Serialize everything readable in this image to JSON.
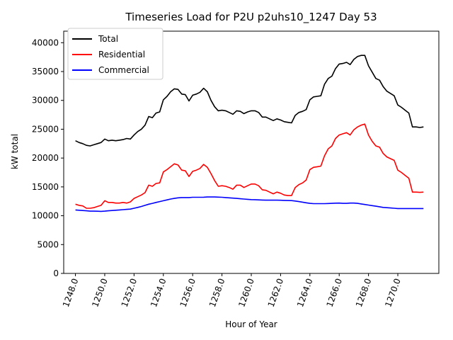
{
  "chart_data": {
    "type": "line",
    "title": "Timeseries Load for P2U p2uhs10_1247  Day 53",
    "xlabel": "Hour of Year",
    "ylabel": "kW total",
    "xlim": [
      1247.2,
      1272.8
    ],
    "ylim": [
      0,
      42000
    ],
    "xticks": [
      1248,
      1250,
      1252,
      1254,
      1256,
      1258,
      1260,
      1262,
      1264,
      1266,
      1268,
      1270
    ],
    "xtick_labels": [
      "1248.0",
      "1250.0",
      "1252.0",
      "1254.0",
      "1256.0",
      "1258.0",
      "1260.0",
      "1262.0",
      "1264.0",
      "1266.0",
      "1268.0",
      "1270.0"
    ],
    "yticks": [
      0,
      5000,
      10000,
      15000,
      20000,
      25000,
      30000,
      35000,
      40000
    ],
    "ytick_labels": [
      "0",
      "5000",
      "10000",
      "15000",
      "20000",
      "25000",
      "30000",
      "35000",
      "40000"
    ],
    "grid": false,
    "legend_position": "top-left",
    "x": [
      1248.0,
      1248.25,
      1248.5,
      1248.75,
      1249.0,
      1249.25,
      1249.5,
      1249.75,
      1250.0,
      1250.25,
      1250.5,
      1250.75,
      1251.0,
      1251.25,
      1251.5,
      1251.75,
      1252.0,
      1252.25,
      1252.5,
      1252.75,
      1253.0,
      1253.25,
      1253.5,
      1253.75,
      1254.0,
      1254.25,
      1254.5,
      1254.75,
      1255.0,
      1255.25,
      1255.5,
      1255.75,
      1256.0,
      1256.25,
      1256.5,
      1256.75,
      1257.0,
      1257.25,
      1257.5,
      1257.75,
      1258.0,
      1258.25,
      1258.5,
      1258.75,
      1259.0,
      1259.25,
      1259.5,
      1259.75,
      1260.0,
      1260.25,
      1260.5,
      1260.75,
      1261.0,
      1261.25,
      1261.5,
      1261.75,
      1262.0,
      1262.25,
      1262.5,
      1262.75,
      1263.0,
      1263.25,
      1263.5,
      1263.75,
      1264.0,
      1264.25,
      1264.5,
      1264.75,
      1265.0,
      1265.25,
      1265.5,
      1265.75,
      1266.0,
      1266.25,
      1266.5,
      1266.75,
      1267.0,
      1267.25,
      1267.5,
      1267.75,
      1268.0,
      1268.25,
      1268.5,
      1268.75,
      1269.0,
      1269.25,
      1269.5,
      1269.75,
      1270.0,
      1270.25,
      1270.5,
      1270.75,
      1271.0,
      1271.25,
      1271.5,
      1271.75
    ],
    "series": [
      {
        "name": "Total",
        "color": "#000000",
        "values": [
          23000,
          22700,
          22500,
          22200,
          22100,
          22300,
          22500,
          22700,
          23300,
          23000,
          23100,
          23000,
          23100,
          23200,
          23400,
          23300,
          24000,
          24600,
          25000,
          25700,
          27200,
          27000,
          27800,
          28000,
          30100,
          30700,
          31500,
          32000,
          31900,
          31100,
          31000,
          29900,
          30900,
          31100,
          31400,
          32100,
          31500,
          30000,
          28900,
          28200,
          28300,
          28200,
          27900,
          27600,
          28200,
          28100,
          27700,
          28000,
          28200,
          28200,
          27900,
          27100,
          27100,
          26800,
          26500,
          26800,
          26600,
          26300,
          26200,
          26100,
          27400,
          27900,
          28100,
          28400,
          30100,
          30600,
          30700,
          30800,
          32800,
          33800,
          34200,
          35500,
          36300,
          36400,
          36600,
          36200,
          37100,
          37600,
          37800,
          37800,
          36000,
          34900,
          33800,
          33500,
          32400,
          31600,
          31200,
          30800,
          29200,
          28800,
          28300,
          27800,
          25400,
          25400,
          25300,
          25400
        ]
      },
      {
        "name": "Residential",
        "color": "#ff0000",
        "values": [
          12000,
          11800,
          11700,
          11300,
          11300,
          11400,
          11600,
          11800,
          12600,
          12300,
          12300,
          12200,
          12200,
          12300,
          12200,
          12400,
          13000,
          13300,
          13600,
          14000,
          15300,
          15100,
          15600,
          15700,
          17600,
          18000,
          18500,
          19000,
          18800,
          17900,
          17800,
          16800,
          17700,
          17900,
          18200,
          18900,
          18400,
          17300,
          16100,
          15100,
          15200,
          15100,
          14900,
          14600,
          15300,
          15300,
          14900,
          15200,
          15500,
          15500,
          15200,
          14500,
          14400,
          14100,
          13800,
          14100,
          13900,
          13600,
          13500,
          13500,
          14900,
          15400,
          15700,
          16200,
          18000,
          18400,
          18500,
          18600,
          20400,
          21600,
          22100,
          23400,
          24000,
          24200,
          24400,
          24000,
          24900,
          25400,
          25700,
          25900,
          24000,
          22900,
          22100,
          21900,
          20800,
          20200,
          19900,
          19600,
          17900,
          17500,
          17000,
          16500,
          14100,
          14100,
          14050,
          14100
        ]
      },
      {
        "name": "Commercial",
        "color": "#0000ff",
        "values": [
          11000,
          10950,
          10900,
          10850,
          10800,
          10800,
          10780,
          10760,
          10800,
          10850,
          10900,
          10950,
          11000,
          11050,
          11100,
          11150,
          11300,
          11450,
          11600,
          11800,
          12000,
          12150,
          12300,
          12450,
          12600,
          12750,
          12900,
          13000,
          13100,
          13150,
          13150,
          13150,
          13200,
          13200,
          13200,
          13220,
          13250,
          13260,
          13250,
          13230,
          13200,
          13150,
          13100,
          13050,
          13000,
          12950,
          12900,
          12850,
          12800,
          12780,
          12750,
          12720,
          12700,
          12700,
          12700,
          12700,
          12680,
          12660,
          12640,
          12620,
          12550,
          12450,
          12350,
          12250,
          12150,
          12100,
          12100,
          12100,
          12100,
          12120,
          12150,
          12180,
          12200,
          12150,
          12150,
          12200,
          12200,
          12150,
          12050,
          11950,
          11850,
          11750,
          11650,
          11550,
          11450,
          11400,
          11350,
          11300,
          11250,
          11250,
          11250,
          11250,
          11250,
          11250,
          11250,
          11250
        ]
      }
    ]
  }
}
